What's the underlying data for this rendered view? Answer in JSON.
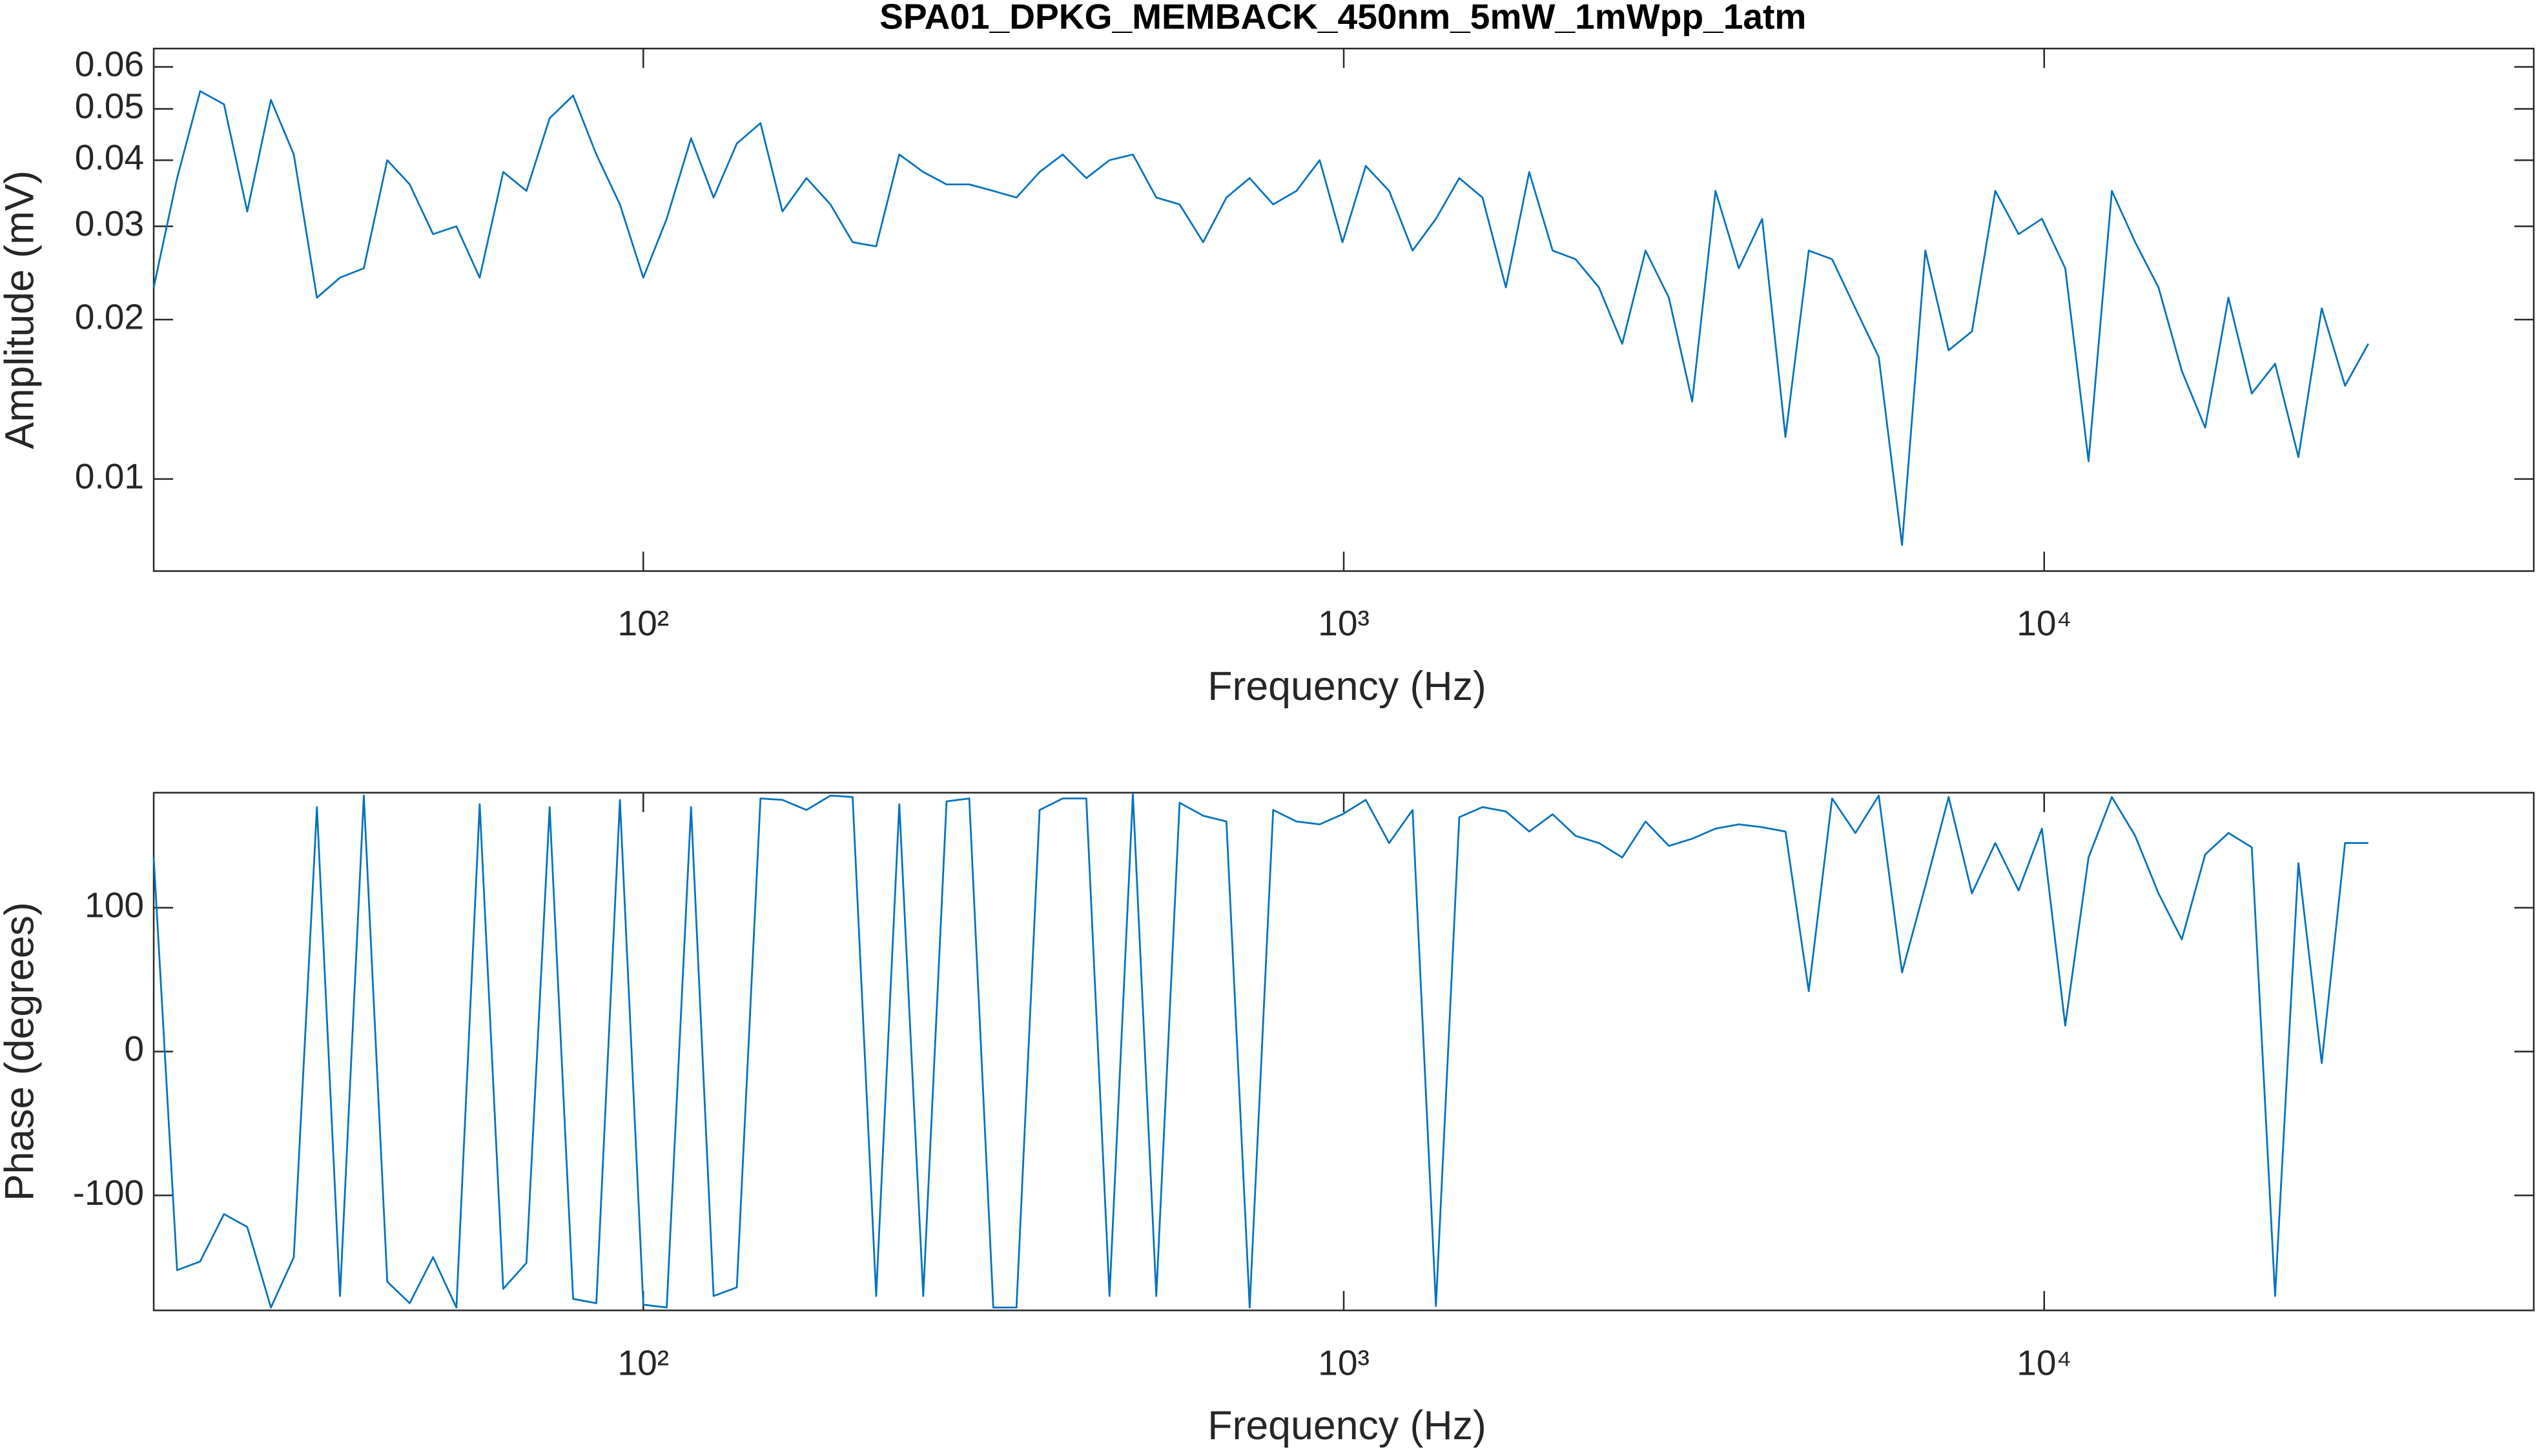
{
  "chart_data": [
    {
      "type": "line",
      "title": "SPA01_DPKG_MEMBACK_450nm_5mW_1mWpp_1atm",
      "xlabel": "Frequency (Hz)",
      "ylabel": "Amplitude (mV)",
      "xscale": "log",
      "yscale": "log",
      "xlim": [
        20,
        50000
      ],
      "ylim": [
        0.0067,
        0.065
      ],
      "xticks": [
        {
          "value": 100,
          "label": "10²"
        },
        {
          "value": 1000,
          "label": "10³"
        },
        {
          "value": 10000,
          "label": "10⁴"
        }
      ],
      "yticks": [
        0.01,
        0.02,
        0.03,
        0.04,
        0.05,
        0.06
      ],
      "x": [
        20,
        21.6,
        23.3,
        25.2,
        27.2,
        29.4,
        31.7,
        34.2,
        36.9,
        39.9,
        43.1,
        46.4,
        50.1,
        54.1,
        58.4,
        63.1,
        68.1,
        73.5,
        79.4,
        85.7,
        92.6,
        100,
        108,
        117,
        126,
        136,
        147,
        158,
        171,
        185,
        199,
        215,
        232,
        251,
        271,
        292,
        316,
        341,
        368,
        397,
        429,
        463,
        500,
        540,
        583,
        630,
        680,
        734,
        793,
        856,
        924,
        996,
        1075,
        1161,
        1254,
        1354,
        1462,
        1578,
        1704,
        1840,
        1987,
        2143,
        2314,
        2498,
        2697,
        2912,
        3144,
        3394,
        3665,
        3957,
        4272,
        4612,
        4980,
        5376,
        5805,
        6267,
        6766,
        7305,
        7887,
        8515,
        9194,
        9926,
        10717,
        11570,
        12492,
        13487,
        14562,
        15722,
        16975,
        18327,
        19787,
        21363,
        23065,
        24902,
        26886,
        29028
      ],
      "series": [
        {
          "color": "#0072bd",
          "values": [
            0.023,
            0.037,
            0.054,
            0.051,
            0.032,
            0.052,
            0.041,
            0.022,
            0.024,
            0.025,
            0.04,
            0.036,
            0.029,
            0.03,
            0.024,
            0.038,
            0.035,
            0.048,
            0.053,
            0.041,
            0.033,
            0.024,
            0.031,
            0.044,
            0.034,
            0.043,
            0.047,
            0.032,
            0.037,
            0.033,
            0.028,
            0.0275,
            0.041,
            0.038,
            0.036,
            0.036,
            0.035,
            0.034,
            0.038,
            0.041,
            0.037,
            0.04,
            0.041,
            0.034,
            0.033,
            0.028,
            0.034,
            0.037,
            0.033,
            0.035,
            0.04,
            0.028,
            0.039,
            0.035,
            0.027,
            0.031,
            0.037,
            0.034,
            0.023,
            0.038,
            0.027,
            0.026,
            0.023,
            0.018,
            0.027,
            0.022,
            0.014,
            0.035,
            0.025,
            0.031,
            0.012,
            0.027,
            0.026,
            0.021,
            0.017,
            0.0075,
            0.027,
            0.0175,
            0.019,
            0.035,
            0.029,
            0.031,
            0.025,
            0.0108,
            0.035,
            0.028,
            0.023,
            0.016,
            0.0125,
            0.022,
            0.0145,
            0.0165,
            0.011,
            0.021,
            0.015,
            0.018
          ]
        }
      ]
    },
    {
      "type": "line",
      "xlabel": "Frequency (Hz)",
      "ylabel": "Phase (degrees)",
      "xscale": "log",
      "yscale": "linear",
      "xlim": [
        20,
        50000
      ],
      "ylim": [
        -180,
        180
      ],
      "xticks": [
        {
          "value": 100,
          "label": "10²"
        },
        {
          "value": 1000,
          "label": "10³"
        },
        {
          "value": 10000,
          "label": "10⁴"
        }
      ],
      "yticks": [
        -100,
        0,
        100
      ],
      "x": [
        20,
        21.6,
        23.3,
        25.2,
        27.2,
        29.4,
        31.7,
        34.2,
        36.9,
        39.9,
        43.1,
        46.4,
        50.1,
        54.1,
        58.4,
        63.1,
        68.1,
        73.5,
        79.4,
        85.7,
        92.6,
        100,
        108,
        117,
        126,
        136,
        147,
        158,
        171,
        185,
        199,
        215,
        232,
        251,
        271,
        292,
        316,
        341,
        368,
        397,
        429,
        463,
        500,
        540,
        583,
        630,
        680,
        734,
        793,
        856,
        924,
        996,
        1075,
        1161,
        1254,
        1354,
        1462,
        1578,
        1704,
        1840,
        1987,
        2143,
        2314,
        2498,
        2697,
        2912,
        3144,
        3394,
        3665,
        3957,
        4272,
        4612,
        4980,
        5376,
        5805,
        6267,
        6766,
        7305,
        7887,
        8515,
        9194,
        9926,
        10717,
        11570,
        12492,
        13487,
        14562,
        15722,
        16975,
        18327,
        19787,
        21363,
        23065,
        24902,
        26886,
        29028
      ],
      "series": [
        {
          "color": "#0072bd",
          "values": [
            135,
            -152,
            -146,
            -113,
            -122,
            -178,
            -143,
            170,
            -170,
            178,
            -160,
            -175,
            -143,
            -178,
            172,
            -165,
            -147,
            170,
            -172,
            -175,
            175,
            -176,
            -178,
            170,
            -170,
            -164,
            176,
            175,
            168,
            178,
            177,
            -170,
            172,
            -170,
            174,
            176,
            -178,
            -178,
            168,
            176,
            176,
            -170,
            179,
            -170,
            173,
            164,
            160,
            -178,
            168,
            160,
            158,
            165,
            175,
            145,
            168,
            -177,
            163,
            170,
            167,
            153,
            165,
            150,
            145,
            135,
            160,
            143,
            148,
            155,
            158,
            156,
            153,
            42,
            176,
            152,
            178,
            55,
            115,
            177,
            110,
            145,
            112,
            155,
            18,
            135,
            177,
            150,
            110,
            78,
            137,
            152,
            142,
            -170,
            131,
            -8,
            145,
            145
          ]
        }
      ]
    }
  ]
}
